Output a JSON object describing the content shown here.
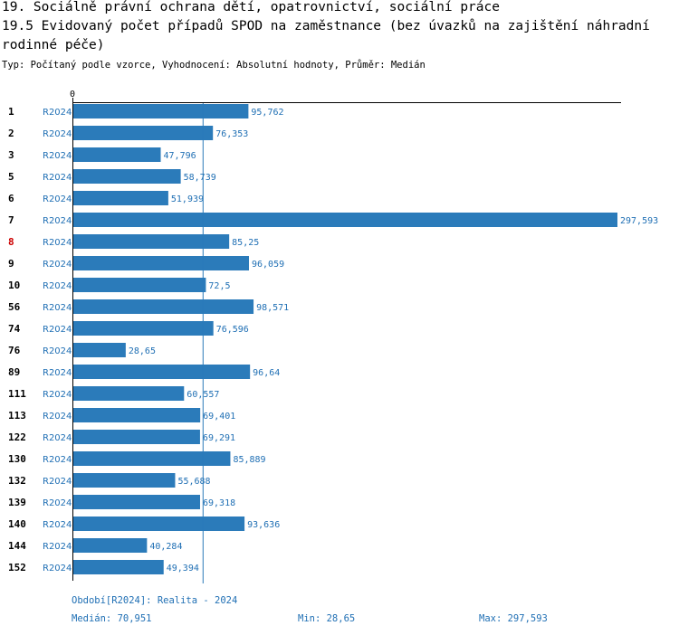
{
  "header": {
    "title1": "19. Sociálně právní ochrana dětí, opatrovnictví, sociální práce",
    "title2": "19.5 Evidovaný počet případů SPOD na zaměstnance (bez úvazků na zajištění náhradní rodinné péče)",
    "subtitle": "Typ: Počítaný podle vzorce, Vyhodnocení: Absolutní hodnoty, Průměr: Medián"
  },
  "colors": {
    "bar": "#2b7bba",
    "value_label": "#1f6fb4",
    "highlight": "#cc0000",
    "median_line": "#2b7bba"
  },
  "chart_data": {
    "type": "bar",
    "orientation": "horizontal",
    "axis_tick_label": "0",
    "xlim": [
      0,
      297.593
    ],
    "median": 70.951,
    "highlighted_category": "8",
    "categories": [
      "1",
      "2",
      "3",
      "5",
      "6",
      "7",
      "8",
      "9",
      "10",
      "56",
      "74",
      "76",
      "89",
      "111",
      "113",
      "122",
      "130",
      "132",
      "139",
      "140",
      "144",
      "152"
    ],
    "period_labels": [
      "R2024",
      "R2024",
      "R2024",
      "R2024",
      "R2024",
      "R2024",
      "R2024",
      "R2024",
      "R2024",
      "R2024",
      "R2024",
      "R2024",
      "R2024",
      "R2024",
      "R2024",
      "R2024",
      "R2024",
      "R2024",
      "R2024",
      "R2024",
      "R2024",
      "R2024"
    ],
    "values": [
      95.762,
      76.353,
      47.796,
      58.739,
      51.939,
      297.593,
      85.25,
      96.059,
      72.5,
      98.571,
      76.596,
      28.65,
      96.64,
      60.557,
      69.401,
      69.291,
      85.889,
      55.688,
      69.318,
      93.636,
      40.284,
      49.394
    ],
    "value_labels": [
      "95,762",
      "76,353",
      "47,796",
      "58,739",
      "51,939",
      "297,593",
      "85,25",
      "96,059",
      "72,5",
      "98,571",
      "76,596",
      "28,65",
      "96,64",
      "60,557",
      "69,401",
      "69,291",
      "85,889",
      "55,688",
      "69,318",
      "93,636",
      "40,284",
      "49,394"
    ]
  },
  "footer": {
    "period": "Období[R2024]: Realita - 2024",
    "median": "Medián: 70,951",
    "min": "Min: 28,65",
    "max": "Max: 297,593"
  }
}
